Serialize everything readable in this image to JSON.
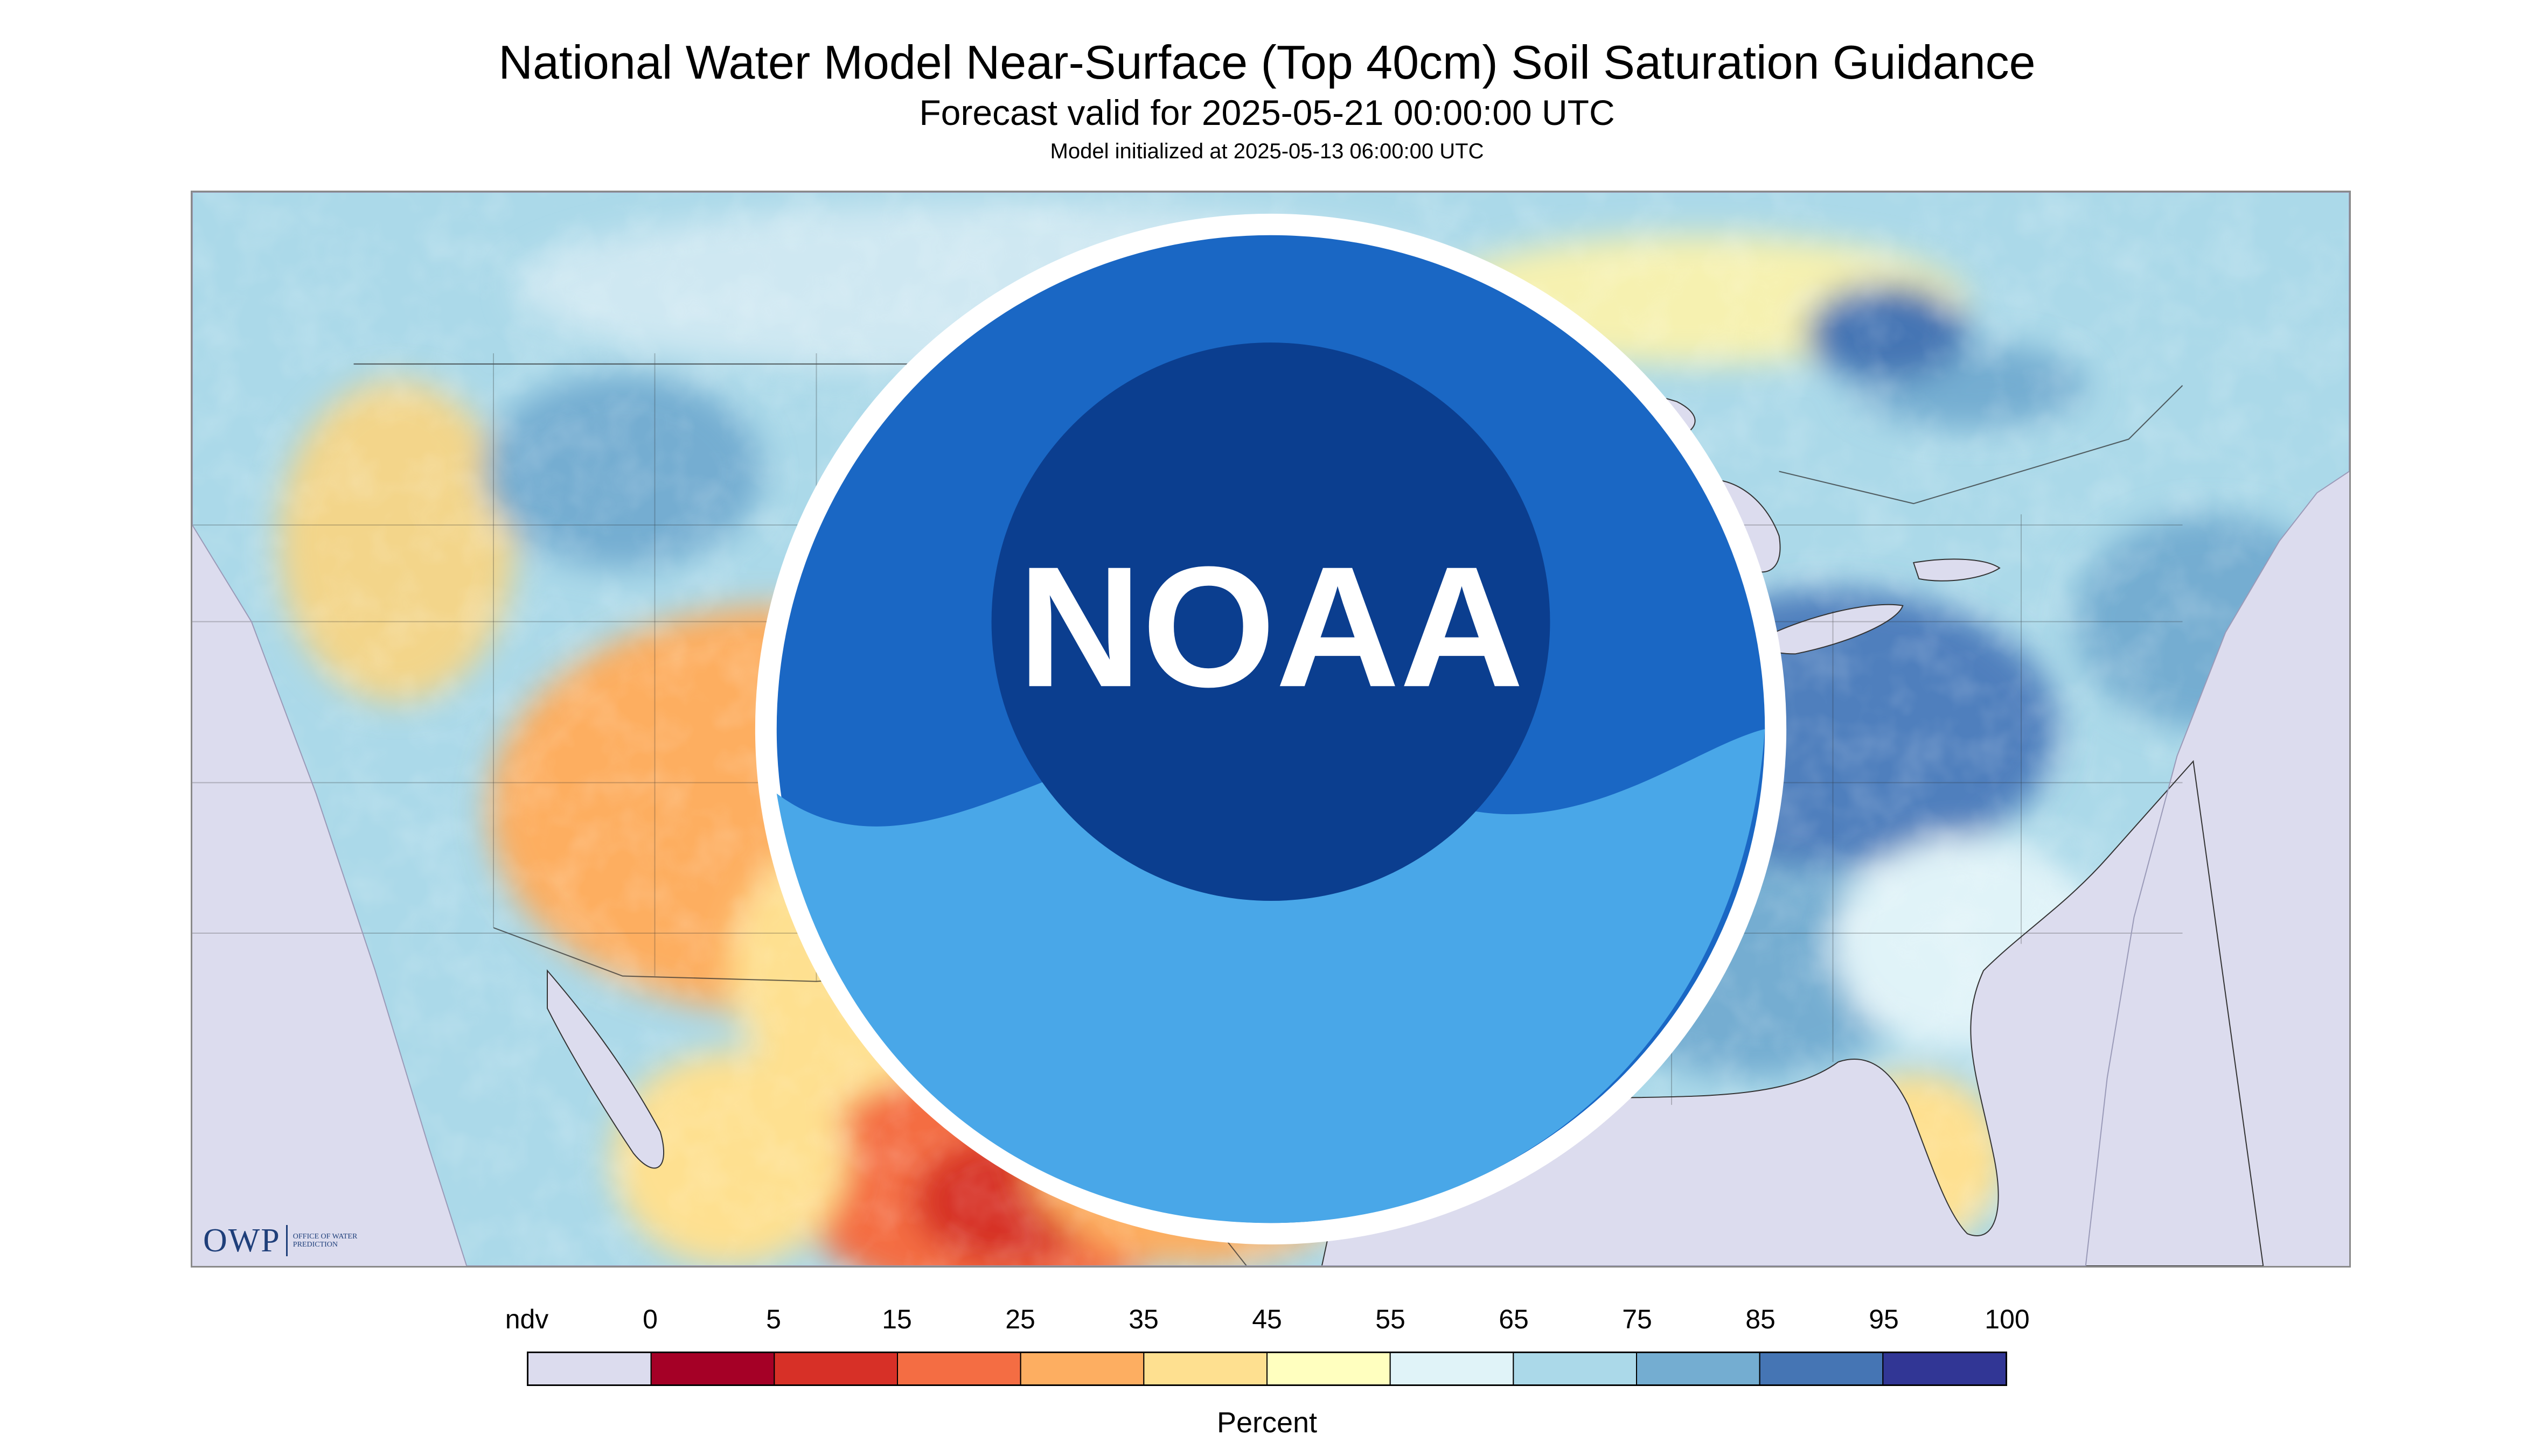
{
  "header": {
    "title": "National Water Model Near-Surface (Top 40cm) Soil Saturation Guidance",
    "subtitle": "Forecast valid for 2025-05-21 00:00:00 UTC",
    "initialized": "Model initialized at 2025-05-13 06:00:00 UTC"
  },
  "map": {
    "region": "CONUS",
    "variable": "Soil Saturation (Top 40cm)",
    "nodata_color": "#dcdcee"
  },
  "logos": {
    "owp": {
      "letters": "OWP",
      "text": "Office of Water Prediction"
    },
    "noaa": {
      "text": "NOAA"
    }
  },
  "legend": {
    "labels": [
      "ndv",
      "0",
      "5",
      "15",
      "25",
      "35",
      "45",
      "55",
      "65",
      "75",
      "85",
      "95",
      "100"
    ],
    "bins": [
      {
        "label": "ndv",
        "color": "#dcdcee"
      },
      {
        "label": "0-5",
        "color": "#a50026"
      },
      {
        "label": "5-15",
        "color": "#d73027"
      },
      {
        "label": "15-25",
        "color": "#f46d43"
      },
      {
        "label": "25-35",
        "color": "#fdae61"
      },
      {
        "label": "35-45",
        "color": "#fee090"
      },
      {
        "label": "45-55",
        "color": "#ffffbf"
      },
      {
        "label": "55-65",
        "color": "#e0f3f8"
      },
      {
        "label": "65-75",
        "color": "#abd9e9"
      },
      {
        "label": "75-85",
        "color": "#74add1"
      },
      {
        "label": "85-95",
        "color": "#4575b4"
      },
      {
        "label": "95-100",
        "color": "#313695"
      }
    ],
    "unit": "Percent"
  }
}
